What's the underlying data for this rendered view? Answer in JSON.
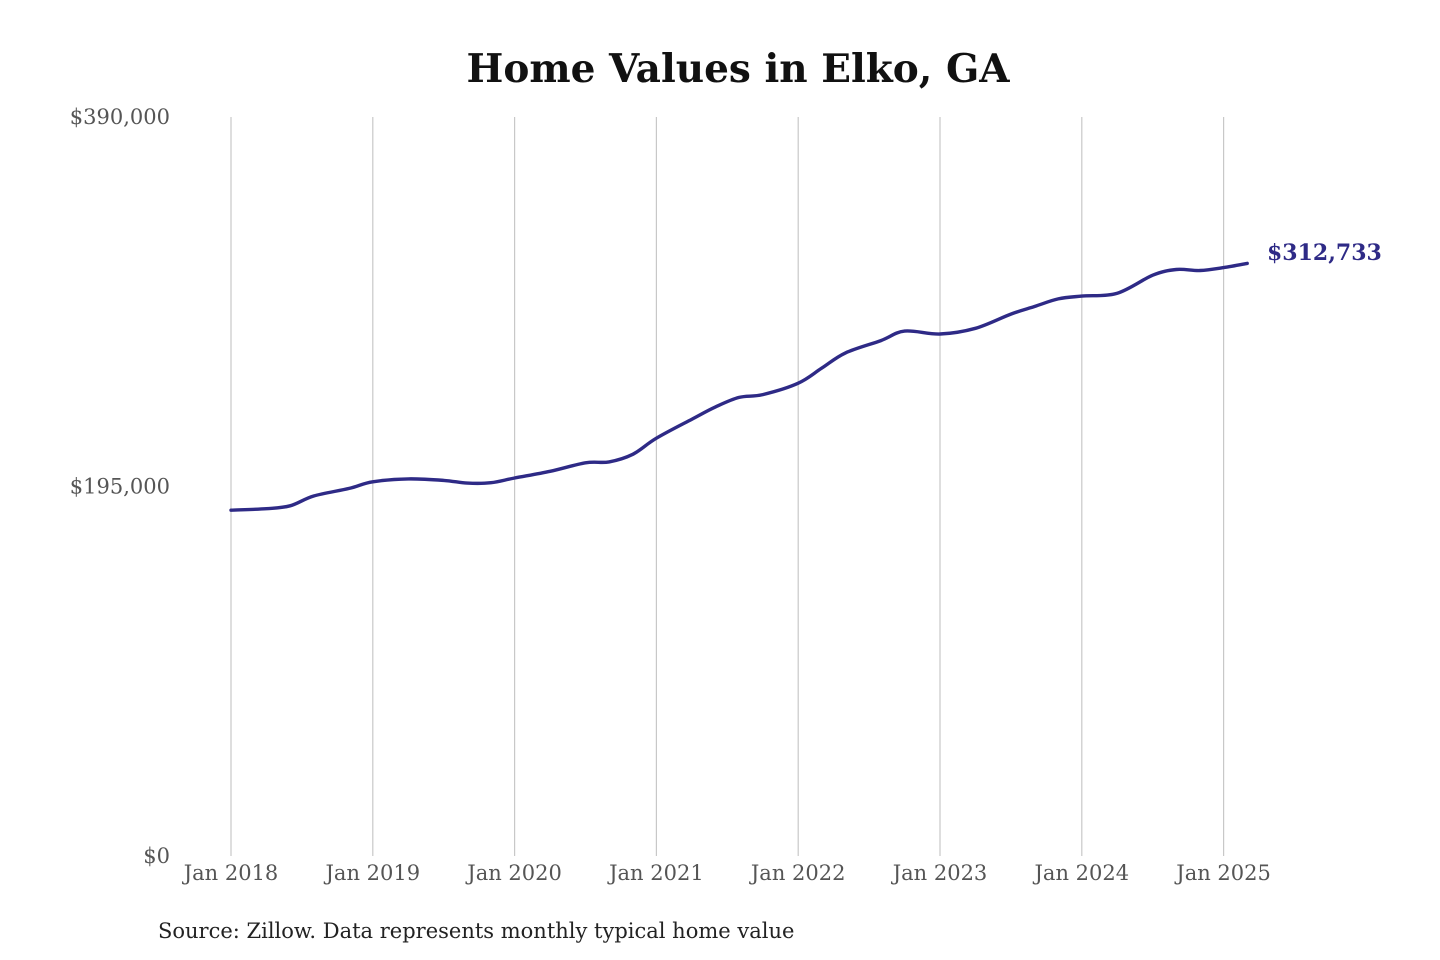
{
  "chart_data": {
    "type": "line",
    "title": "Home Values in Elko, GA",
    "xlabel": "",
    "ylabel": "",
    "ylim": [
      0,
      390000
    ],
    "y_ticks": [
      "$390,000",
      "$195,000",
      "$0"
    ],
    "y_tick_values": [
      390000,
      195000,
      0
    ],
    "x_ticks": [
      "Jan 2018",
      "Jan 2019",
      "Jan 2020",
      "Jan 2021",
      "Jan 2022",
      "Jan 2023",
      "Jan 2024",
      "Jan 2025"
    ],
    "x_tick_values": [
      "2018-01",
      "2019-01",
      "2020-01",
      "2021-01",
      "2022-01",
      "2023-01",
      "2024-01",
      "2025-01"
    ],
    "grid": "vertical",
    "legend": "none",
    "series": [
      {
        "color": "#2e2a86",
        "x": [
          "2018-01",
          "2018-04",
          "2018-06",
          "2018-08",
          "2018-11",
          "2019-01",
          "2019-04",
          "2019-07",
          "2019-09",
          "2019-11",
          "2020-01",
          "2020-04",
          "2020-07",
          "2020-09",
          "2020-11",
          "2021-01",
          "2021-04",
          "2021-06",
          "2021-08",
          "2021-10",
          "2022-01",
          "2022-03",
          "2022-05",
          "2022-08",
          "2022-10",
          "2023-01",
          "2023-04",
          "2023-07",
          "2023-09",
          "2023-11",
          "2024-01",
          "2024-04",
          "2024-07",
          "2024-09",
          "2024-11",
          "2025-01",
          "2025-03"
        ],
        "y": [
          182500,
          183300,
          184800,
          190000,
          194000,
          197500,
          199000,
          198200,
          196800,
          197000,
          199500,
          203000,
          207500,
          208000,
          212000,
          220500,
          230500,
          237000,
          242000,
          243500,
          249500,
          257500,
          265500,
          272000,
          277000,
          275500,
          278500,
          286000,
          290000,
          294000,
          295500,
          297000,
          306500,
          309500,
          309000,
          310500,
          312733
        ]
      }
    ],
    "end_label": "$312,733",
    "source": "Source: Zillow. Data represents monthly typical home value"
  }
}
